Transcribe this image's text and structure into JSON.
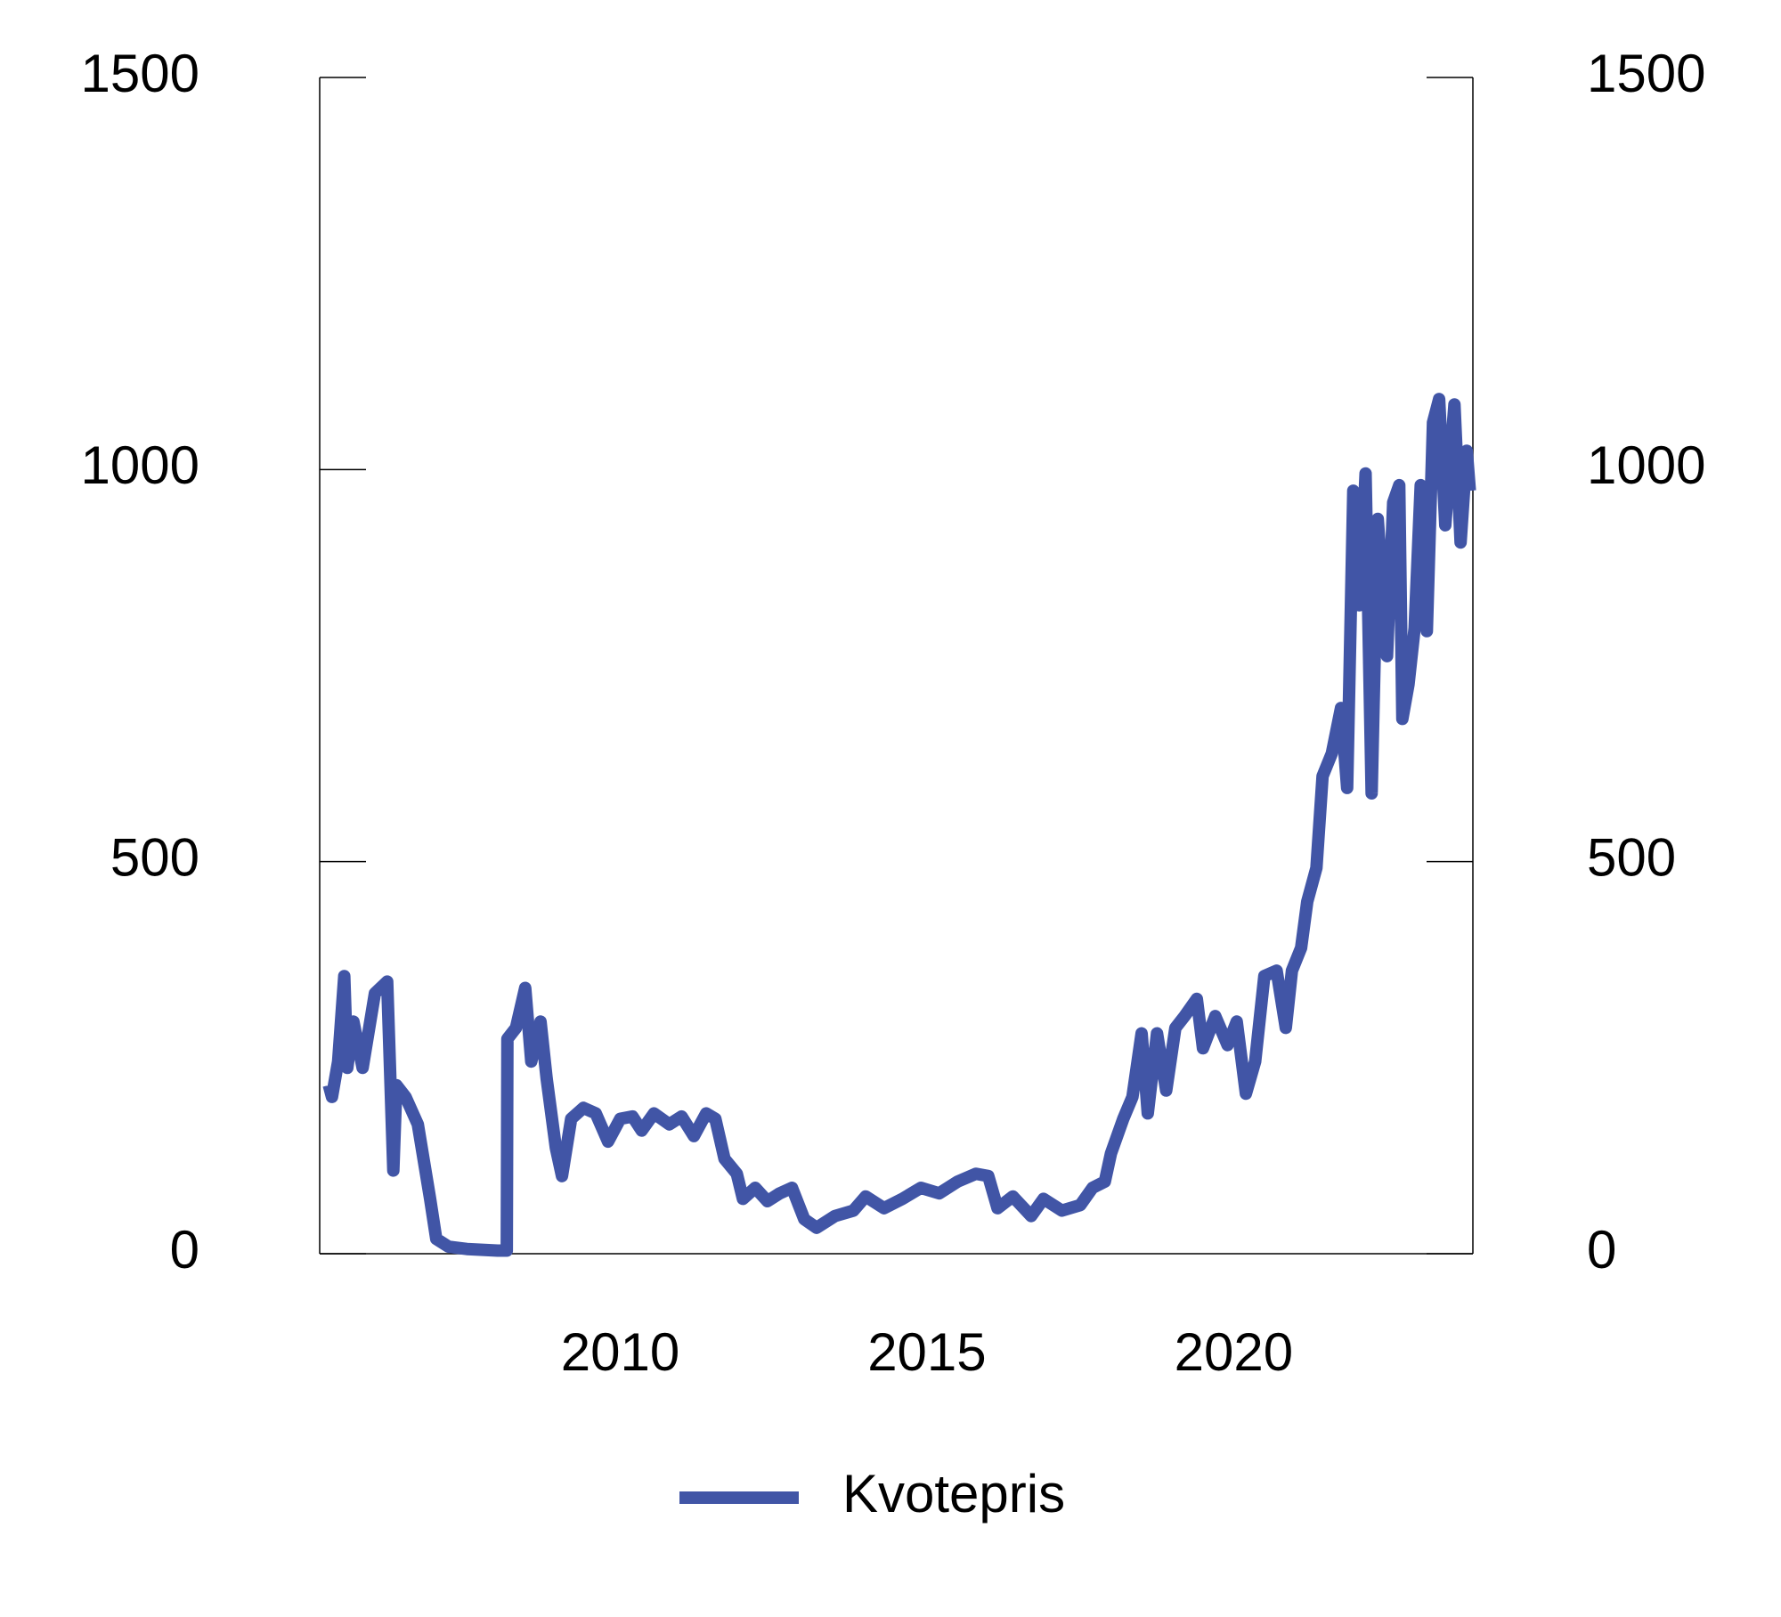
{
  "chart_data": {
    "type": "line",
    "x": [
      2005.25,
      2005.3,
      2005.4,
      2005.5,
      2005.55,
      2005.65,
      2005.8,
      2006.0,
      2006.2,
      2006.3,
      2006.35,
      2006.5,
      2006.7,
      2006.9,
      2007.0,
      2007.2,
      2007.5,
      2008.0,
      2008.15,
      2008.16,
      2008.3,
      2008.45,
      2008.55,
      2008.7,
      2008.8,
      2008.95,
      2009.05,
      2009.2,
      2009.4,
      2009.6,
      2009.8,
      2010.0,
      2010.2,
      2010.35,
      2010.55,
      2010.8,
      2011.0,
      2011.2,
      2011.4,
      2011.55,
      2011.7,
      2011.9,
      2012.0,
      2012.2,
      2012.4,
      2012.6,
      2012.8,
      2013.0,
      2013.2,
      2013.5,
      2013.8,
      2014.0,
      2014.3,
      2014.6,
      2014.9,
      2015.2,
      2015.5,
      2015.8,
      2016.0,
      2016.15,
      2016.4,
      2016.7,
      2016.9,
      2017.2,
      2017.5,
      2017.7,
      2017.9,
      2018.0,
      2018.2,
      2018.35,
      2018.5,
      2018.6,
      2018.75,
      2018.9,
      2019.05,
      2019.2,
      2019.4,
      2019.5,
      2019.7,
      2019.9,
      2020.05,
      2020.2,
      2020.35,
      2020.5,
      2020.7,
      2020.85,
      2020.95,
      2021.1,
      2021.2,
      2021.35,
      2021.45,
      2021.6,
      2021.75,
      2021.85,
      2021.95,
      2022.05,
      2022.15,
      2022.25,
      2022.35,
      2022.5,
      2022.6,
      2022.7,
      2022.75,
      2022.85,
      2022.95,
      2023.05,
      2023.15,
      2023.25,
      2023.35,
      2023.45,
      2023.6,
      2023.7,
      2023.8,
      2023.85
    ],
    "series": [
      {
        "name": "Kvotepris",
        "color": "#4155a6",
        "values": [
          215,
          200,
          245,
          354,
          237,
          296,
          237,
          332,
          347,
          106,
          215,
          200,
          165,
          70,
          19,
          9,
          6,
          4,
          4,
          274,
          288,
          339,
          245,
          296,
          223,
          135,
          99,
          172,
          186,
          179,
          143,
          172,
          175,
          157,
          179,
          165,
          175,
          150,
          179,
          172,
          121,
          102,
          70,
          84,
          67,
          77,
          84,
          44,
          33,
          48,
          55,
          73,
          58,
          70,
          84,
          77,
          92,
          102,
          99,
          58,
          73,
          48,
          70,
          55,
          62,
          84,
          92,
          128,
          172,
          200,
          281,
          179,
          281,
          208,
          288,
          303,
          325,
          262,
          303,
          266,
          296,
          204,
          245,
          354,
          361,
          288,
          361,
          390,
          449,
          492,
          609,
          638,
          696,
          594,
          973,
          827,
          995,
          587,
          937,
          762,
          958,
          980,
          682,
          726,
          798,
          980,
          794,
          1060,
          1090,
          929,
          1083,
          907,
          1024,
          973
        ]
      }
    ],
    "xlim": [
      2005.1,
      2023.9
    ],
    "xticks": [
      2010,
      2015,
      2020
    ],
    "ylim": [
      0,
      1500
    ],
    "yticks": [
      0,
      500,
      1000,
      1500
    ],
    "y2lim": [
      0,
      1500
    ],
    "y2ticks": [
      0,
      500,
      1000,
      1500
    ],
    "legend": "bottom"
  }
}
